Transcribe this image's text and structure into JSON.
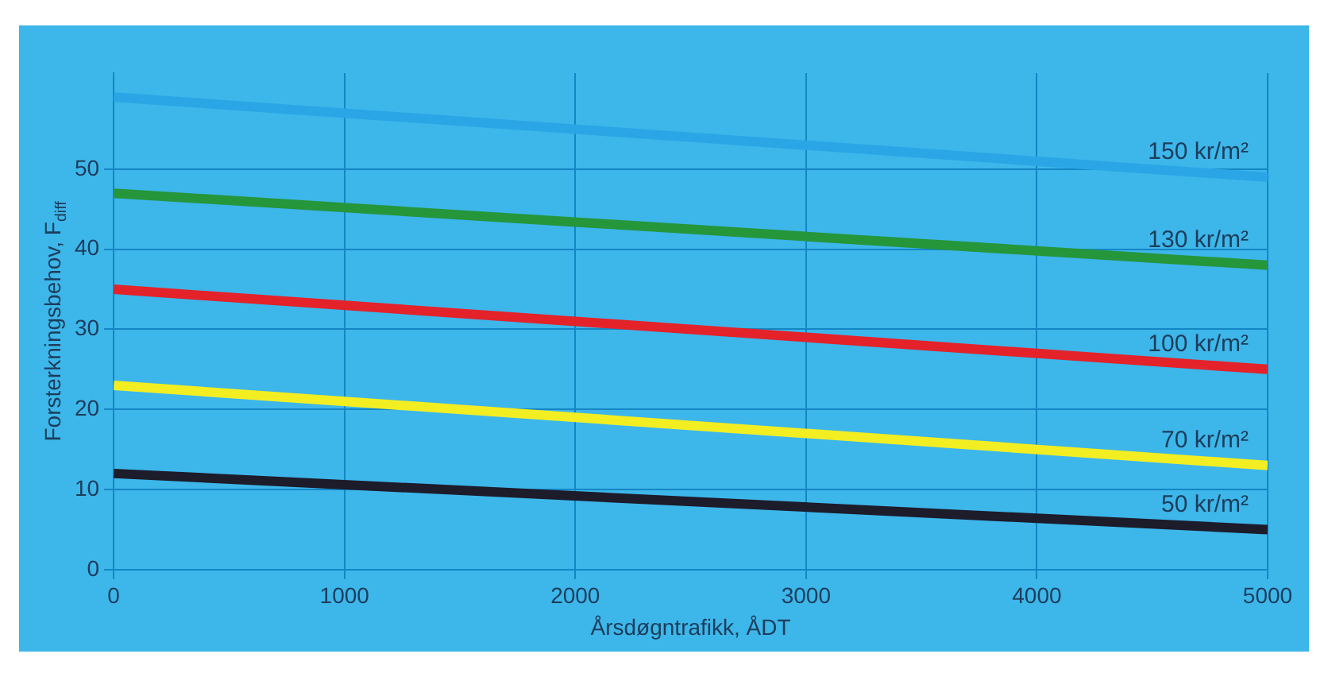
{
  "chart_data": {
    "type": "line",
    "xlabel": "Årsdøgntrafikk, ÅDT",
    "ylabel": "Forsterkningsbehov, F$_{diff}$",
    "x": [
      0,
      5000
    ],
    "xlim": [
      0,
      5000
    ],
    "xticks": [
      0,
      1000,
      2000,
      3000,
      4000,
      5000
    ],
    "ylim": [
      0,
      62
    ],
    "yticks": [
      0,
      10,
      20,
      30,
      40,
      50
    ],
    "grid": true,
    "legend": false,
    "marker": "none",
    "line_style": "solid",
    "series": [
      {
        "name": "150 kr/m²",
        "color": "#2aa6e6",
        "values": [
          59,
          49
        ]
      },
      {
        "name": "130 kr/m²",
        "color": "#25963a",
        "values": [
          47,
          38
        ]
      },
      {
        "name": "100 kr/m²",
        "color": "#e4222a",
        "values": [
          35,
          25
        ]
      },
      {
        "name": "70 kr/m²",
        "color": "#f2ee22",
        "values": [
          23,
          13
        ]
      },
      {
        "name": "50 kr/m²",
        "color": "#1c1c2a",
        "values": [
          12,
          5
        ]
      }
    ]
  }
}
